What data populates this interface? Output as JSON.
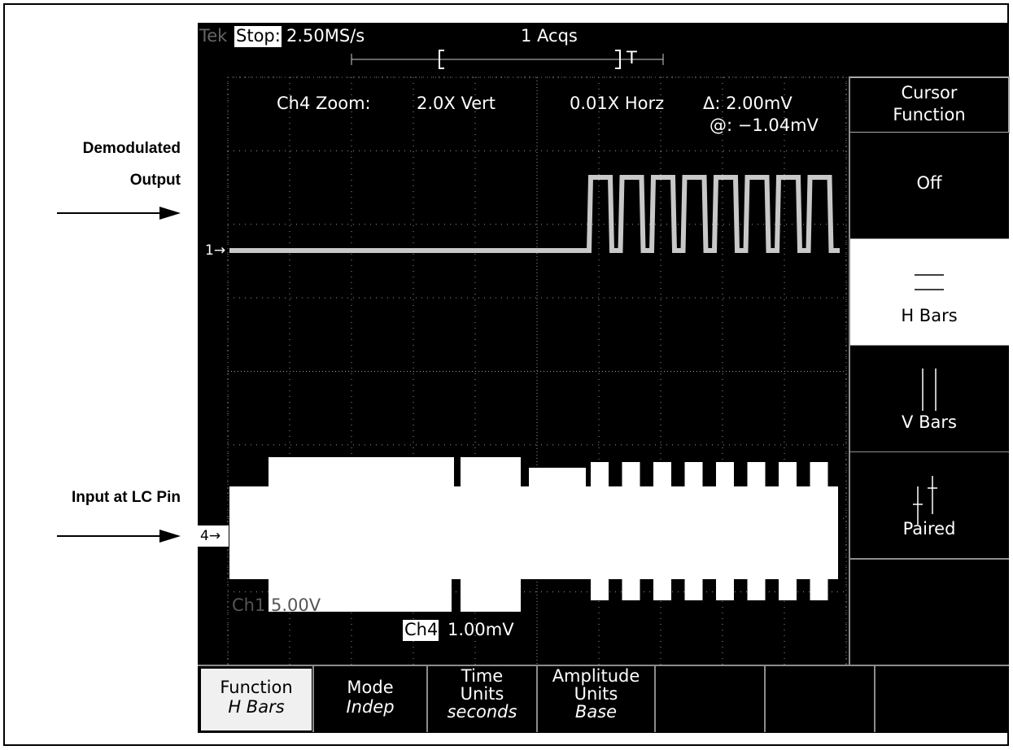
{
  "annotations": [
    {
      "lines": [
        "Demodulated",
        "Output"
      ]
    },
    {
      "lines": [
        "Input at LC Pin"
      ]
    }
  ],
  "screen": {
    "status": {
      "brand": "Tek",
      "state": "Stop:",
      "sample_rate": "2.50MS/s",
      "acquisitions": "1 Acqs",
      "trigger": "T"
    },
    "readout": {
      "zoom_label": "Ch4 Zoom:",
      "vert": "2.0X Vert",
      "horz": "0.01X Horz",
      "delta": "Δ: 2.00mV",
      "at": "@: −1.04mV"
    },
    "markers": [
      "1→",
      "4→"
    ],
    "channel_readouts": {
      "ch1": "Ch1  5.00V",
      "ch4": "Ch4",
      "ch4_scale": "1.00mV"
    }
  },
  "side_menu": {
    "title": [
      "Cursor",
      "Function"
    ],
    "items": [
      {
        "label": "Off",
        "selected": false
      },
      {
        "label": "H Bars",
        "selected": true
      },
      {
        "label": "V Bars",
        "selected": false
      },
      {
        "label": "Paired",
        "selected": false
      }
    ]
  },
  "bottom_menu": [
    {
      "lines": [
        "Function"
      ],
      "value": "H Bars",
      "selected": true
    },
    {
      "lines": [
        "Mode"
      ],
      "value": "Indep",
      "selected": false
    },
    {
      "lines": [
        "Time",
        "Units"
      ],
      "value": "seconds",
      "selected": false
    },
    {
      "lines": [
        "Amplitude",
        "Units"
      ],
      "value": "Base",
      "selected": false
    }
  ]
}
